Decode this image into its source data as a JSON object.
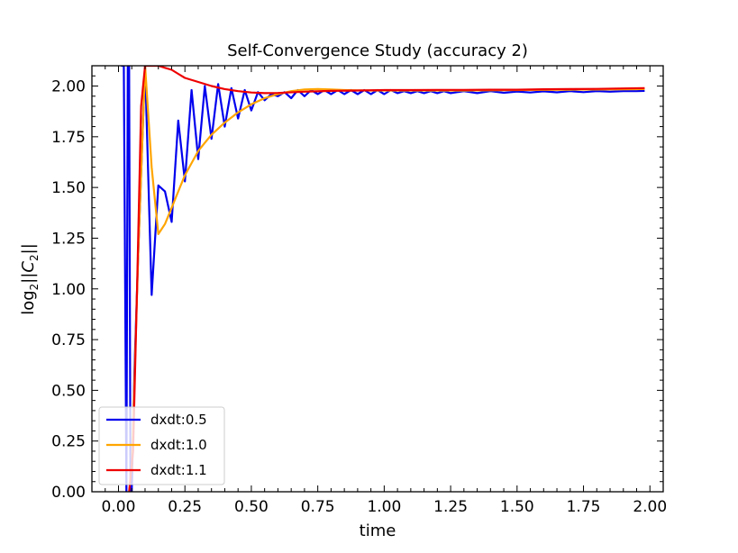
{
  "chart_data": {
    "type": "line",
    "title": "Self-Convergence Study (accuracy 2)",
    "xlabel": "time",
    "ylabel_main": "log",
    "ylabel_sub": "2",
    "ylabel_norm_open": "||",
    "ylabel_var": "C",
    "ylabel_var_sub": "2",
    "ylabel_norm_close": "||",
    "xlim": [
      -0.1,
      2.05
    ],
    "ylim": [
      0.0,
      2.1
    ],
    "xticks": [
      0.0,
      0.25,
      0.5,
      0.75,
      1.0,
      1.25,
      1.5,
      1.75,
      2.0
    ],
    "xtick_labels": [
      "0.00",
      "0.25",
      "0.50",
      "0.75",
      "1.00",
      "1.25",
      "1.50",
      "1.75",
      "2.00"
    ],
    "yticks": [
      0.0,
      0.25,
      0.5,
      0.75,
      1.0,
      1.25,
      1.5,
      1.75,
      2.0
    ],
    "ytick_labels": [
      "0.00",
      "0.25",
      "0.50",
      "0.75",
      "1.00",
      "1.25",
      "1.50",
      "1.75",
      "2.00"
    ],
    "grid": false,
    "legend_position": "lower-left",
    "series": [
      {
        "name": "dxdt:0.5",
        "color": "#0000ee",
        "x": [
          0.01,
          0.02,
          0.03,
          0.035,
          0.04,
          0.045,
          0.05,
          0.06,
          0.075,
          0.1,
          0.125,
          0.15,
          0.175,
          0.2,
          0.225,
          0.25,
          0.275,
          0.3,
          0.325,
          0.35,
          0.375,
          0.4,
          0.425,
          0.45,
          0.475,
          0.5,
          0.525,
          0.55,
          0.575,
          0.6,
          0.625,
          0.65,
          0.675,
          0.7,
          0.725,
          0.75,
          0.775,
          0.8,
          0.825,
          0.85,
          0.875,
          0.9,
          0.925,
          0.95,
          0.975,
          1.0,
          1.025,
          1.05,
          1.075,
          1.1,
          1.125,
          1.15,
          1.175,
          1.2,
          1.225,
          1.25,
          1.3,
          1.35,
          1.4,
          1.45,
          1.5,
          1.55,
          1.6,
          1.65,
          1.7,
          1.75,
          1.8,
          1.85,
          1.9,
          1.95,
          1.98
        ],
        "y": [
          2.1,
          2.1,
          0.0,
          2.1,
          2.1,
          0.0,
          0.0,
          0.6,
          1.2,
          2.1,
          0.97,
          1.51,
          1.48,
          1.33,
          1.83,
          1.53,
          1.98,
          1.64,
          2.0,
          1.74,
          2.01,
          1.8,
          1.99,
          1.84,
          1.98,
          1.88,
          1.97,
          1.93,
          1.96,
          1.95,
          1.97,
          1.94,
          1.98,
          1.95,
          1.98,
          1.96,
          1.98,
          1.96,
          1.98,
          1.96,
          1.98,
          1.96,
          1.98,
          1.96,
          1.98,
          1.96,
          1.98,
          1.965,
          1.975,
          1.965,
          1.975,
          1.965,
          1.975,
          1.965,
          1.975,
          1.965,
          1.975,
          1.965,
          1.975,
          1.967,
          1.973,
          1.968,
          1.974,
          1.969,
          1.975,
          1.97,
          1.975,
          1.972,
          1.975,
          1.975,
          1.976
        ]
      },
      {
        "name": "dxdt:1.0",
        "color": "#ffa500",
        "x": [
          0.05,
          0.075,
          0.1,
          0.125,
          0.15,
          0.175,
          0.2,
          0.225,
          0.25,
          0.275,
          0.3,
          0.325,
          0.35,
          0.375,
          0.4,
          0.45,
          0.5,
          0.55,
          0.6,
          0.65,
          0.7,
          0.75,
          0.8,
          0.85,
          0.9,
          0.95,
          1.0,
          1.1,
          1.2,
          1.3,
          1.4,
          1.5,
          1.6,
          1.7,
          1.8,
          1.9,
          1.98
        ],
        "y": [
          0.1,
          1.2,
          2.1,
          1.6,
          1.27,
          1.32,
          1.4,
          1.48,
          1.56,
          1.62,
          1.68,
          1.72,
          1.76,
          1.79,
          1.82,
          1.87,
          1.91,
          1.94,
          1.96,
          1.975,
          1.983,
          1.985,
          1.983,
          1.98,
          1.979,
          1.978,
          1.978,
          1.978,
          1.978,
          1.978,
          1.979,
          1.98,
          1.981,
          1.982,
          1.983,
          1.984,
          1.985
        ]
      },
      {
        "name": "dxdt:1.1",
        "color": "#ee0000",
        "x": [
          0.04,
          0.055,
          0.07,
          0.085,
          0.1,
          0.125,
          0.15,
          0.175,
          0.2,
          0.225,
          0.25,
          0.3,
          0.35,
          0.4,
          0.45,
          0.5,
          0.55,
          0.6,
          0.7,
          0.8,
          0.9,
          1.0,
          1.1,
          1.2,
          1.3,
          1.4,
          1.5,
          1.6,
          1.7,
          1.8,
          1.9,
          1.98
        ],
        "y": [
          0.0,
          0.2,
          1.0,
          1.9,
          2.1,
          2.1,
          2.1,
          2.09,
          2.08,
          2.06,
          2.04,
          2.02,
          2.0,
          1.985,
          1.975,
          1.968,
          1.965,
          1.966,
          1.972,
          1.976,
          1.978,
          1.98,
          1.98,
          1.981,
          1.981,
          1.982,
          1.982,
          1.984,
          1.985,
          1.986,
          1.988,
          1.99
        ]
      }
    ]
  }
}
